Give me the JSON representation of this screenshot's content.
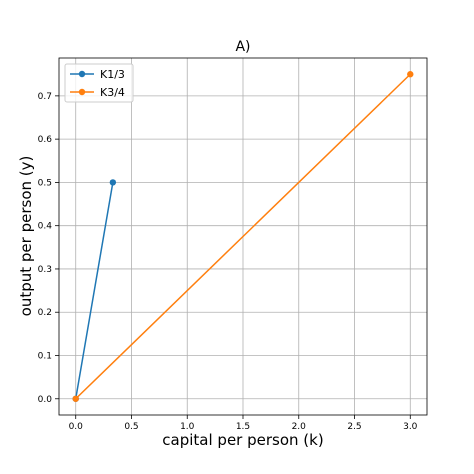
{
  "chart_data": {
    "type": "line",
    "title": "A)",
    "xlabel": "capital per person (k)",
    "ylabel": "output per person (y)",
    "xlim": [
      -0.15,
      3.15
    ],
    "ylim": [
      -0.0375,
      0.7875
    ],
    "xticks": [
      0.0,
      0.5,
      1.0,
      1.5,
      2.0,
      2.5,
      3.0
    ],
    "xtick_labels": [
      "0.0",
      "0.5",
      "1.0",
      "1.5",
      "2.0",
      "2.5",
      "3.0"
    ],
    "yticks": [
      0.0,
      0.1,
      0.2,
      0.3,
      0.4,
      0.5,
      0.6,
      0.7
    ],
    "ytick_labels": [
      "0.0",
      "0.1",
      "0.2",
      "0.3",
      "0.4",
      "0.5",
      "0.6",
      "0.7"
    ],
    "grid": true,
    "legend_position": "top-left",
    "series": [
      {
        "name": "K1/3",
        "color": "#1f77b4",
        "marker": "circle",
        "x": [
          0.0,
          0.333
        ],
        "y": [
          0.0,
          0.5
        ]
      },
      {
        "name": "K3/4",
        "color": "#ff7f0e",
        "marker": "circle",
        "x": [
          0.0,
          3.0
        ],
        "y": [
          0.0,
          0.75
        ]
      }
    ]
  }
}
